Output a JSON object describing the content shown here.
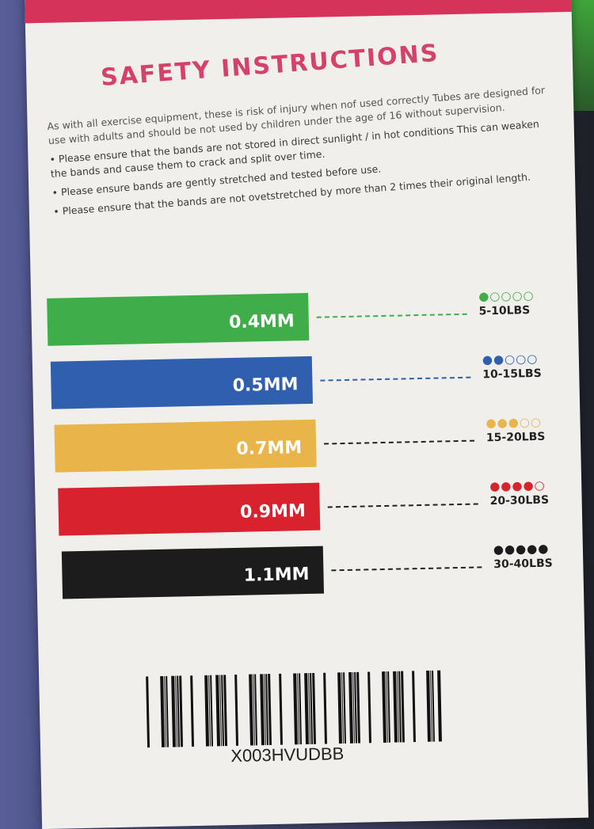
{
  "title": "SAFETY INSTRUCTIONS",
  "intro": "As with all exercise equipment, these is risk of injury when nof used correctly Tubes are designed for use with adults and should be not used by children under the age of 16 without supervision.",
  "bullets": [
    "Please ensure that the bands are not stored in direct sunlight / in hot conditions This can weaken the bands and cause them to crack and split over time.",
    "Please ensure bands are gently stretched and tested before use.",
    "Please ensure that the bands are not ovetstretched by more than 2 times their original length."
  ],
  "bands": [
    {
      "thickness": "0.4MM",
      "resistance": "5-10LBS",
      "color": "#3fae49",
      "level": 1,
      "dots": "●○○○○"
    },
    {
      "thickness": "0.5MM",
      "resistance": "10-15LBS",
      "color": "#2f5fae",
      "level": 2,
      "dots": "●●○○○"
    },
    {
      "thickness": "0.7MM",
      "resistance": "15-20LBS",
      "color": "#e9b54a",
      "level": 3,
      "dots": "●●●○○"
    },
    {
      "thickness": "0.9MM",
      "resistance": "20-30LBS",
      "color": "#d8232f",
      "level": 4,
      "dots": "●●●●○"
    },
    {
      "thickness": "1.1MM",
      "resistance": "30-40LBS",
      "color": "#1c1c1c",
      "level": 5,
      "dots": "●●●●●"
    }
  ],
  "barcode_text": "X003HVUDBB"
}
